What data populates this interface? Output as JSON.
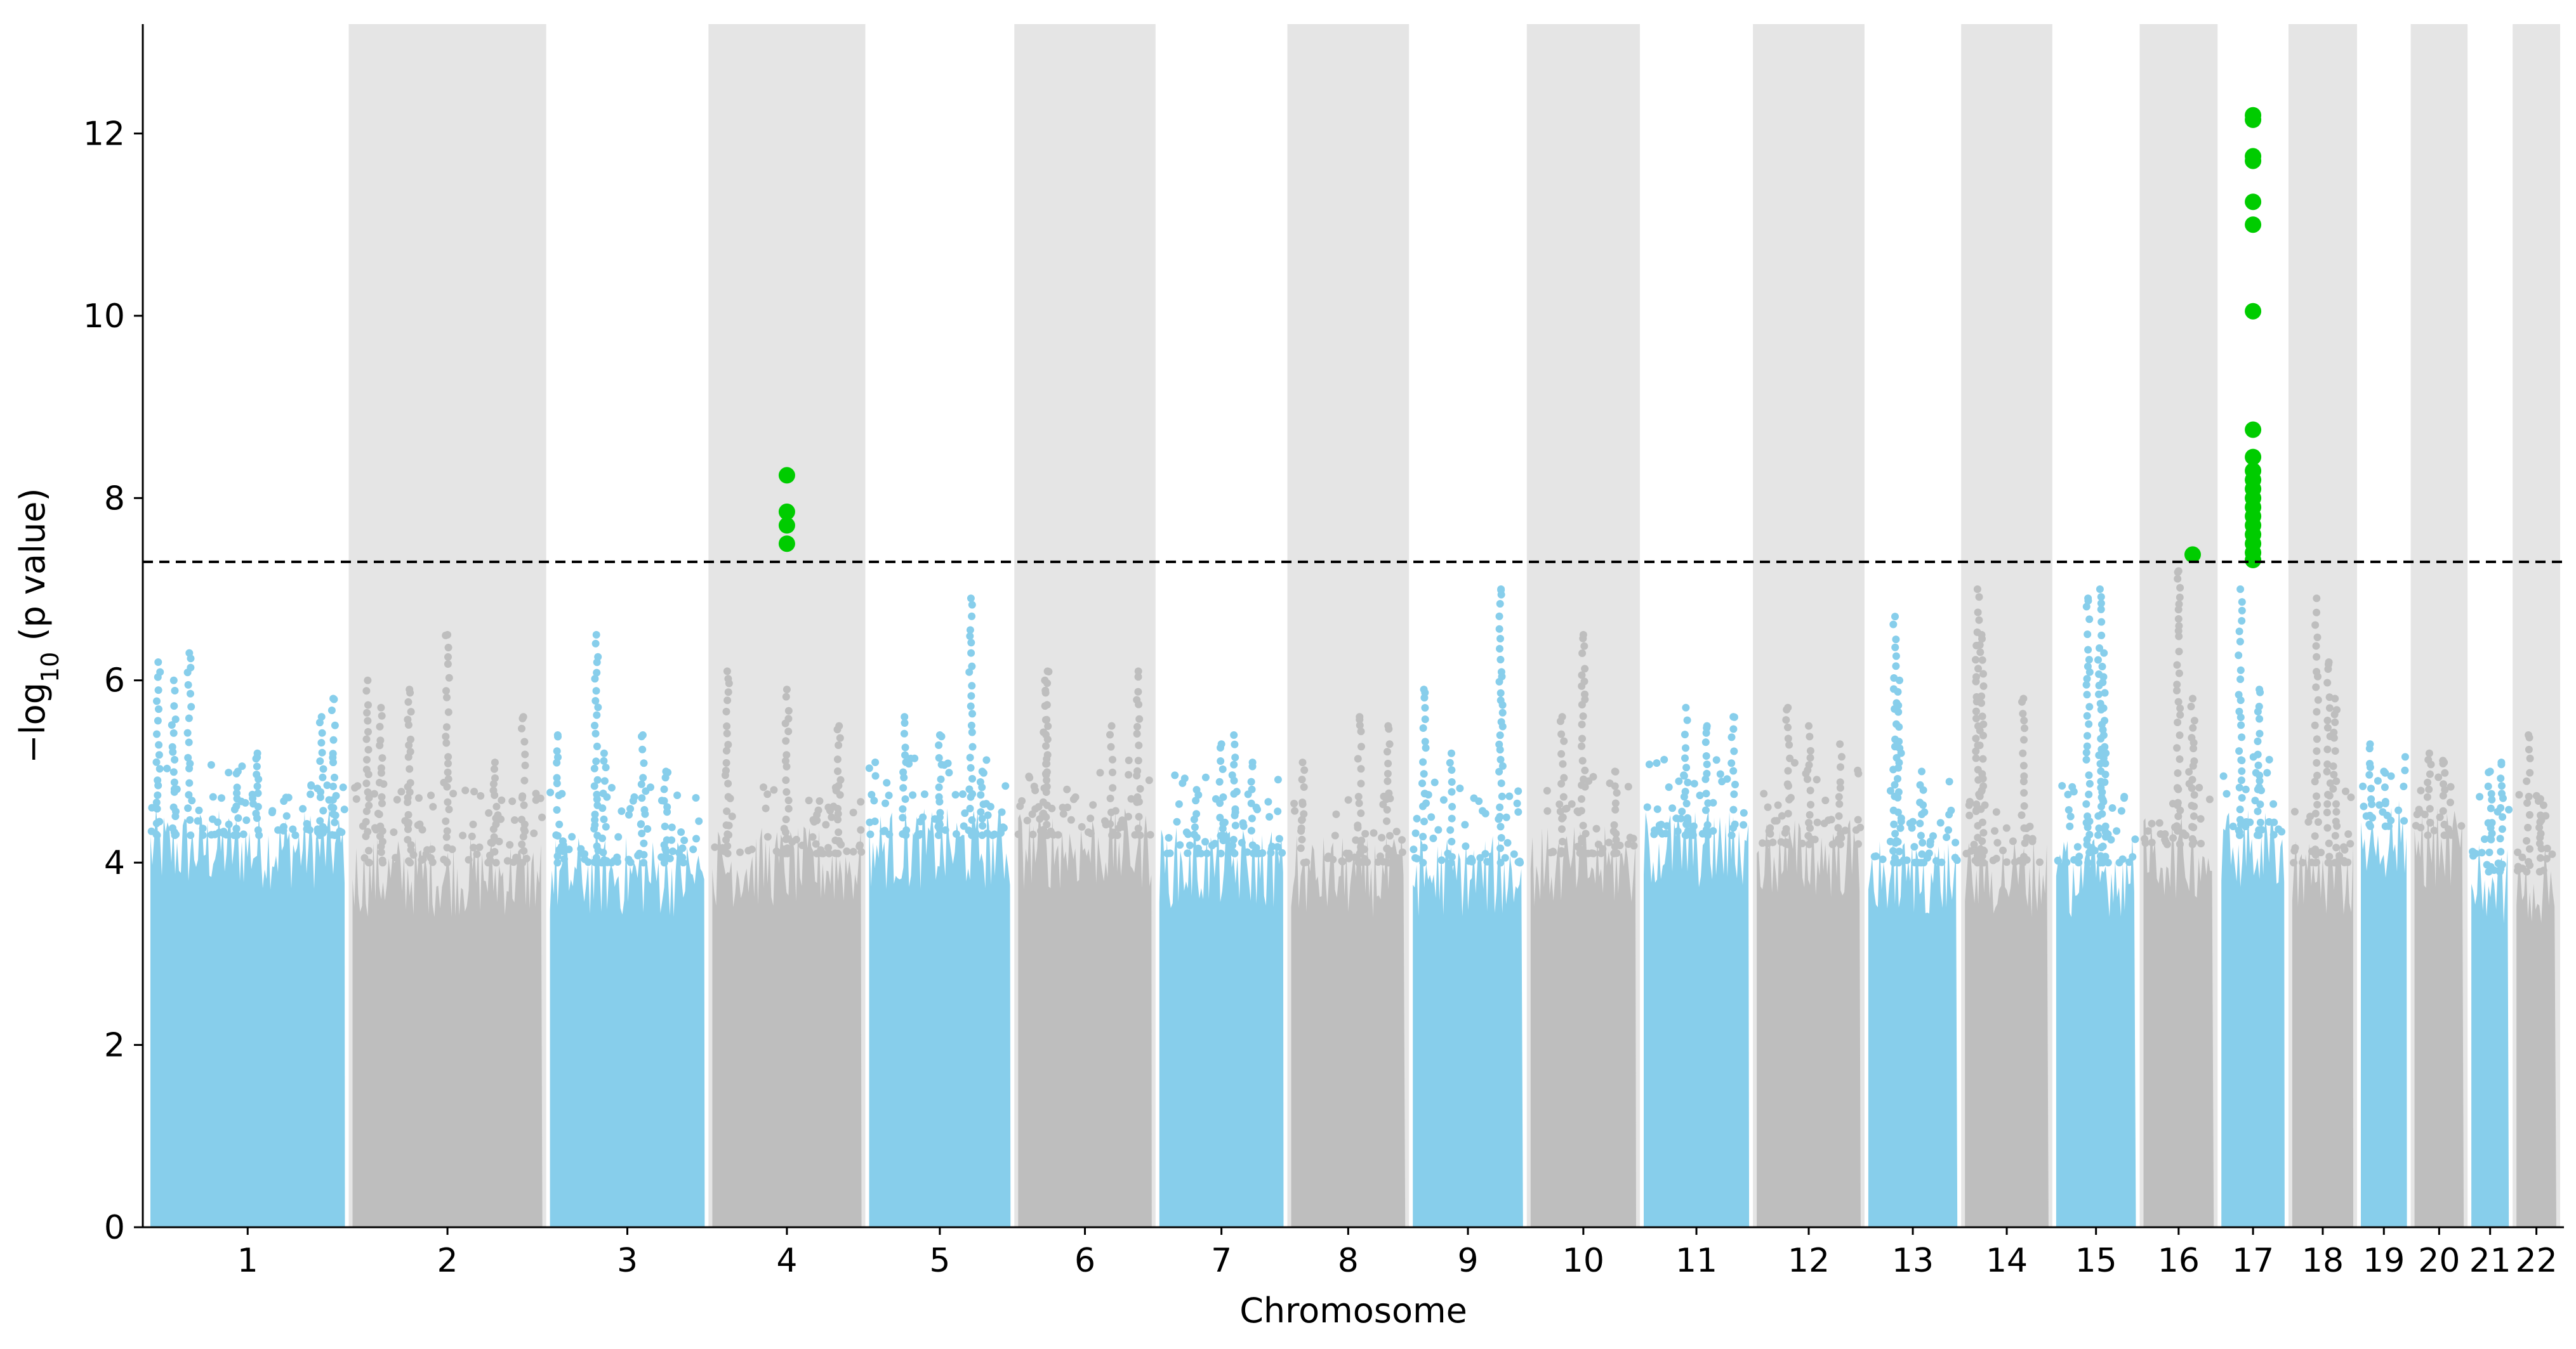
{
  "chart_data": {
    "type": "scatter",
    "subtype": "manhattan",
    "title": "",
    "xlabel": "Chromosome",
    "ylabel_parts": {
      "pre": "−log",
      "sub": "10",
      "post": " (p value)"
    },
    "ylim": [
      0,
      13.2
    ],
    "yticks": [
      0,
      2,
      4,
      6,
      8,
      10,
      12
    ],
    "significance_line": 7.3,
    "colors": {
      "odd": "#87ceeb",
      "even": "#bebebe",
      "significant": "#00cc00",
      "band": "#e5e5e5",
      "threshold": "#000000"
    },
    "chromosomes": [
      {
        "label": "1",
        "size": 249,
        "baseline": 4.3,
        "peaks": [
          [
            0.04,
            6.2
          ],
          [
            0.12,
            6.0
          ],
          [
            0.2,
            6.3
          ],
          [
            0.45,
            5.0
          ],
          [
            0.55,
            5.2
          ],
          [
            0.88,
            5.6
          ],
          [
            0.94,
            5.8
          ]
        ]
      },
      {
        "label": "2",
        "size": 243,
        "baseline": 4.0,
        "peaks": [
          [
            0.08,
            6.0
          ],
          [
            0.15,
            5.7
          ],
          [
            0.3,
            5.9
          ],
          [
            0.5,
            6.5
          ],
          [
            0.75,
            5.1
          ],
          [
            0.9,
            5.6
          ]
        ]
      },
      {
        "label": "3",
        "size": 198,
        "baseline": 4.0,
        "peaks": [
          [
            0.05,
            5.4
          ],
          [
            0.3,
            6.5
          ],
          [
            0.35,
            5.2
          ],
          [
            0.6,
            5.4
          ],
          [
            0.75,
            5.0
          ]
        ]
      },
      {
        "label": "4",
        "size": 191,
        "baseline": 4.1,
        "peaks": [
          [
            0.1,
            6.1
          ],
          [
            0.5,
            5.9
          ],
          [
            0.85,
            5.5
          ]
        ]
      },
      {
        "label": "5",
        "size": 181,
        "baseline": 4.3,
        "peaks": [
          [
            0.25,
            5.6
          ],
          [
            0.5,
            5.4
          ],
          [
            0.72,
            6.9
          ],
          [
            0.8,
            5.0
          ]
        ]
      },
      {
        "label": "6",
        "size": 171,
        "baseline": 4.3,
        "peaks": [
          [
            0.2,
            6.0
          ],
          [
            0.22,
            6.1
          ],
          [
            0.7,
            5.5
          ],
          [
            0.9,
            6.1
          ]
        ]
      },
      {
        "label": "7",
        "size": 159,
        "baseline": 4.1,
        "peaks": [
          [
            0.3,
            4.8
          ],
          [
            0.5,
            5.3
          ],
          [
            0.6,
            5.4
          ],
          [
            0.75,
            5.1
          ]
        ]
      },
      {
        "label": "8",
        "size": 146,
        "baseline": 4.0,
        "peaks": [
          [
            0.1,
            5.1
          ],
          [
            0.6,
            5.6
          ],
          [
            0.85,
            5.5
          ]
        ]
      },
      {
        "label": "9",
        "size": 141,
        "baseline": 4.0,
        "peaks": [
          [
            0.1,
            5.9
          ],
          [
            0.35,
            5.2
          ],
          [
            0.8,
            7.0
          ]
        ]
      },
      {
        "label": "10",
        "size": 135,
        "baseline": 4.1,
        "peaks": [
          [
            0.3,
            5.6
          ],
          [
            0.5,
            6.5
          ],
          [
            0.8,
            5.0
          ]
        ]
      },
      {
        "label": "11",
        "size": 135,
        "baseline": 4.3,
        "peaks": [
          [
            0.4,
            5.7
          ],
          [
            0.6,
            5.5
          ],
          [
            0.85,
            5.6
          ]
        ]
      },
      {
        "label": "12",
        "size": 133,
        "baseline": 4.2,
        "peaks": [
          [
            0.3,
            5.7
          ],
          [
            0.5,
            5.5
          ],
          [
            0.8,
            5.3
          ]
        ]
      },
      {
        "label": "13",
        "size": 114,
        "baseline": 4.0,
        "peaks": [
          [
            0.3,
            6.7
          ],
          [
            0.35,
            6.0
          ],
          [
            0.6,
            5.0
          ]
        ]
      },
      {
        "label": "14",
        "size": 107,
        "baseline": 4.0,
        "peaks": [
          [
            0.15,
            7.0
          ],
          [
            0.2,
            6.5
          ],
          [
            0.7,
            5.8
          ]
        ]
      },
      {
        "label": "15",
        "size": 102,
        "baseline": 4.0,
        "peaks": [
          [
            0.4,
            6.9
          ],
          [
            0.55,
            7.0
          ],
          [
            0.6,
            6.3
          ]
        ]
      },
      {
        "label": "16",
        "size": 90,
        "baseline": 4.2,
        "peaks": [
          [
            0.5,
            7.2
          ],
          [
            0.7,
            5.8
          ]
        ]
      },
      {
        "label": "17",
        "size": 81,
        "baseline": 4.3,
        "peaks": [
          [
            0.3,
            7.0
          ],
          [
            0.6,
            5.9
          ]
        ]
      },
      {
        "label": "18",
        "size": 78,
        "baseline": 4.0,
        "peaks": [
          [
            0.4,
            6.9
          ],
          [
            0.6,
            6.2
          ],
          [
            0.7,
            5.8
          ]
        ]
      },
      {
        "label": "19",
        "size": 59,
        "baseline": 4.4,
        "peaks": [
          [
            0.2,
            5.3
          ],
          [
            0.5,
            5.0
          ]
        ]
      },
      {
        "label": "20",
        "size": 63,
        "baseline": 4.3,
        "peaks": [
          [
            0.3,
            5.2
          ],
          [
            0.6,
            5.1
          ]
        ]
      },
      {
        "label": "21",
        "size": 48,
        "baseline": 3.9,
        "peaks": [
          [
            0.5,
            5.0
          ],
          [
            0.8,
            5.1
          ]
        ]
      },
      {
        "label": "22",
        "size": 51,
        "baseline": 3.9,
        "peaks": [
          [
            0.3,
            5.4
          ],
          [
            0.6,
            4.7
          ]
        ]
      }
    ],
    "significant_points": [
      {
        "chrom": "4",
        "pos": 0.5,
        "values": [
          8.25,
          7.85,
          7.7,
          7.5
        ]
      },
      {
        "chrom": "16",
        "pos": 0.7,
        "values": [
          7.38
        ]
      },
      {
        "chrom": "17",
        "pos": 0.5,
        "values": [
          12.2,
          12.15,
          11.75,
          11.7,
          11.25,
          11.0,
          10.05,
          8.75,
          8.45,
          8.3,
          8.2,
          8.1,
          8.0,
          7.9,
          7.8,
          7.7,
          7.6,
          7.5,
          7.4,
          7.32
        ]
      }
    ]
  }
}
